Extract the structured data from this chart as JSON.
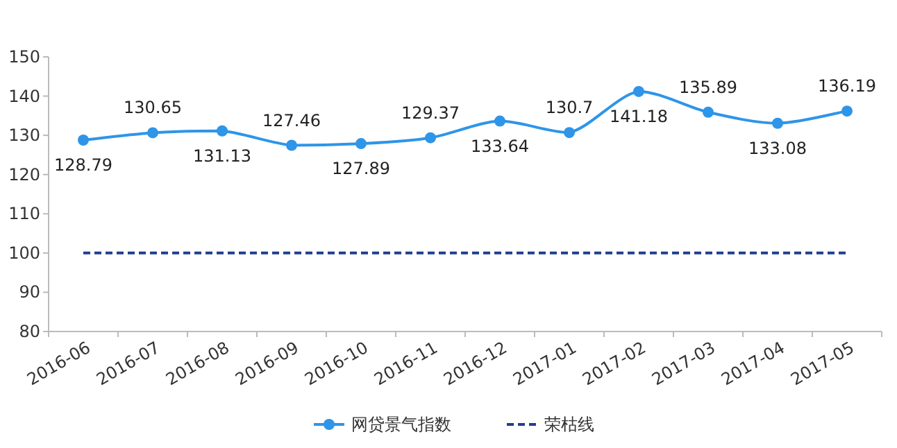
{
  "chart_data": {
    "type": "line",
    "categories": [
      "2016-06",
      "2016-07",
      "2016-08",
      "2016-09",
      "2016-10",
      "2016-11",
      "2016-12",
      "2017-01",
      "2017-02",
      "2017-03",
      "2017-04",
      "2017-05"
    ],
    "series": [
      {
        "name": "网贷景气指数",
        "color": "#2e95e8",
        "values": [
          128.79,
          130.65,
          131.13,
          127.46,
          127.89,
          129.37,
          133.64,
          130.7,
          141.18,
          135.89,
          133.08,
          136.19
        ]
      }
    ],
    "ylim": [
      80,
      150
    ],
    "yticks": [
      80,
      90,
      100,
      110,
      120,
      130,
      140,
      150
    ],
    "ref_lines": [
      {
        "axis": "y",
        "value": 100,
        "label": "荣枯线",
        "color": "#1f3f8f",
        "line_style": "dashed"
      }
    ],
    "data_labels": true,
    "legend": "bottom",
    "marker": "circle",
    "line_style": "solid",
    "grid": false
  }
}
